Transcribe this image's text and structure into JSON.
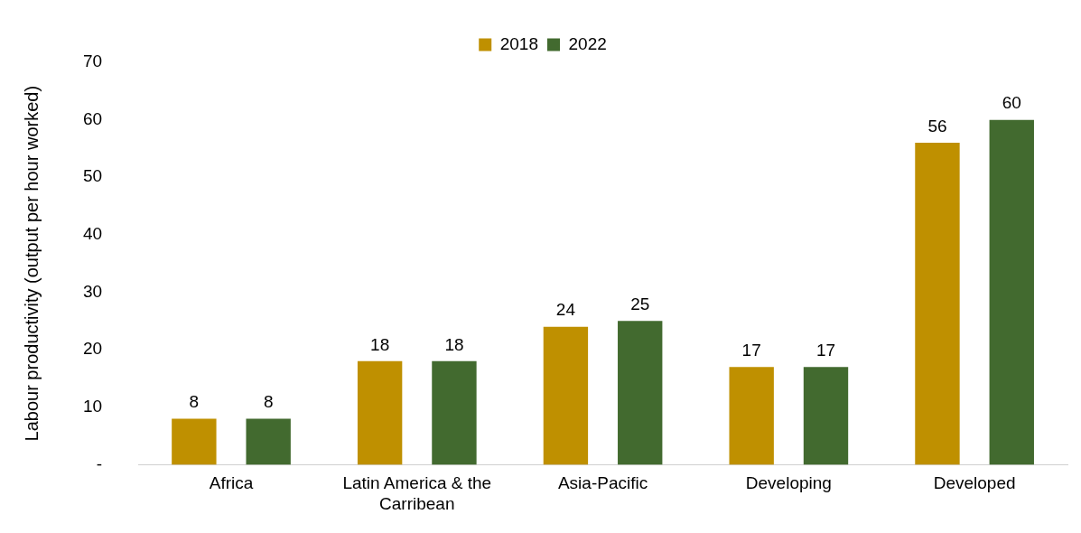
{
  "chart_data": {
    "type": "bar",
    "ylabel": "Labour productivity (output per hour worked)",
    "categories": [
      "Africa",
      "Latin America & the Carribean",
      "Asia-Pacific",
      "Developing",
      "Developed"
    ],
    "series": [
      {
        "name": "2018",
        "color": "#bf9000",
        "values": [
          8,
          18,
          24,
          17,
          56
        ]
      },
      {
        "name": "2022",
        "color": "#426a2f",
        "values": [
          8,
          18,
          25,
          17,
          60
        ]
      }
    ],
    "ylim": [
      0,
      70
    ],
    "yticks": [
      {
        "value": 0,
        "label": "-"
      },
      10,
      20,
      30,
      40,
      50,
      60,
      70
    ],
    "grid": false,
    "legend": "top",
    "data_labels": true
  }
}
